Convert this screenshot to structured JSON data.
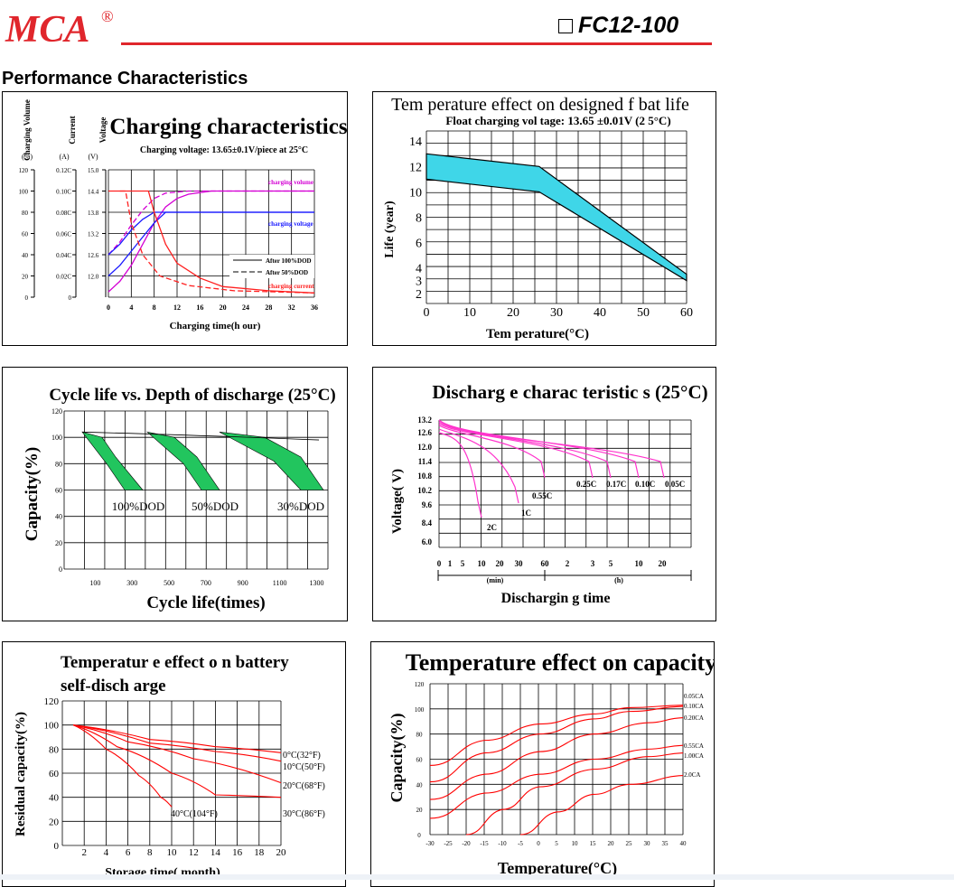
{
  "header": {
    "brand": "MCA",
    "registered_mark": "®",
    "model": "FC12-100",
    "section_title": "Performance Characteristics",
    "colors": {
      "brand_red": "#e0262c"
    }
  },
  "charts": {
    "charging": {
      "title": "Charging characteristics",
      "subtitle": "Charging voltage: 13.65±0.1V/piece at 25°C",
      "axis_names": [
        "Charging Volume",
        "Current",
        "Voltage"
      ],
      "axis_units": [
        "(%)",
        "(A)",
        "(V)"
      ],
      "volume_ticks": [
        "120",
        "100",
        "80",
        "60",
        "40",
        "20",
        "0"
      ],
      "current_ticks": [
        "0.12C",
        "0.10C",
        "0.08C",
        "0.06C",
        "0.04C",
        "0.02C",
        "0"
      ],
      "voltage_ticks": [
        "15.0",
        "14.4",
        "13.8",
        "13.2",
        "12.6",
        "12.0"
      ],
      "x_ticks": [
        "0",
        "4",
        "8",
        "12",
        "16",
        "20",
        "24",
        "28",
        "32",
        "36"
      ],
      "xlabel": "Charging time(h our)",
      "labels": {
        "volume": "charging volume",
        "voltage": "charging voltage",
        "current": "charging current"
      },
      "legend": [
        "After 100%DOD",
        "After 50%DOD"
      ]
    },
    "float_life": {
      "title": "Tem perature effect on designed f bat life",
      "subtitle": "Float charging vol tage: 13.65 ±0.01V (2 5°C)",
      "y_ticks": [
        "14",
        "12",
        "10",
        "8",
        "6",
        "4",
        "3",
        "2"
      ],
      "x_ticks": [
        "0",
        "10",
        "20",
        "30",
        "40",
        "50",
        "60"
      ],
      "ylabel": "Life (year)",
      "xlabel": "Tem perature(°C)",
      "band_upper": [
        [
          0,
          13
        ],
        [
          26,
          12
        ],
        [
          60,
          3.5
        ]
      ],
      "band_lower": [
        [
          0,
          11
        ],
        [
          26,
          10
        ],
        [
          60,
          3
        ]
      ],
      "colors": {
        "band": "#3fd6e8"
      }
    },
    "cycle_life": {
      "title": "Cycle life vs. Depth of discharge (25°C)",
      "y_ticks": [
        "120",
        "100",
        "80",
        "60",
        "40",
        "20",
        "0"
      ],
      "x_ticks": [
        "100",
        "300",
        "500",
        "700",
        "900",
        "1100",
        "1300"
      ],
      "ylabel": "Capacity(%)",
      "xlabel": "Cycle life(times)",
      "bands": [
        "100%DOD",
        "50%DOD",
        "30%DOD"
      ],
      "colors": {
        "band": "#22c55e"
      }
    },
    "discharge": {
      "title": "Discharg e charac teristic s (25°C)",
      "y_ticks": [
        "13.2",
        "12.6",
        "12.0",
        "11.4",
        "10.8",
        "10.2",
        "9.6",
        "8.4",
        "6.0"
      ],
      "x_ticks_min": [
        "0",
        "1",
        "5",
        "10",
        "20",
        "30",
        "60"
      ],
      "x_ticks_h": [
        "2",
        "3",
        "5",
        "10",
        "20"
      ],
      "unit_min": "(min)",
      "unit_h": "(h)",
      "ylabel": "Voltage( V)",
      "xlabel": "Dischargin g time",
      "rates": [
        "2C",
        "1C",
        "0.55C",
        "0.25C",
        "0.17C",
        "0.10C",
        "0.05C"
      ],
      "colors": {
        "curve": "#ff33cc"
      }
    },
    "self_discharge": {
      "title_line1": "Temperatur e effect o n battery",
      "title_line2": "self-disch arge",
      "y_ticks": [
        "120",
        "100",
        "80",
        "60",
        "40",
        "20",
        "0"
      ],
      "x_ticks": [
        "2",
        "4",
        "6",
        "8",
        "10",
        "12",
        "14",
        "16",
        "18",
        "20"
      ],
      "ylabel": "Residual capacity(%)",
      "xlabel": "Storage time( month)",
      "series": [
        "0°C(32°F)",
        "10°C(50°F)",
        "20°C(68°F)",
        "30°C(86°F)",
        "40°C(104°F)"
      ],
      "colors": {
        "curve": "#ff0000"
      }
    },
    "temp_capacity": {
      "title": "Temperature effect on capacity",
      "y_ticks": [
        "120",
        "100",
        "80",
        "60",
        "40",
        "20",
        "0"
      ],
      "x_ticks": [
        "-30",
        "-25",
        "-20",
        "-15",
        "-10",
        "-5",
        "0",
        "5",
        "10",
        "15",
        "20",
        "25",
        "30",
        "35",
        "40"
      ],
      "ylabel": "Capacity(%)",
      "xlabel": "Temperature(°C)",
      "series": [
        "0.05CA",
        "0.10CA",
        "0.20CA",
        "0.55CA",
        "1.00CA",
        "2.0CA"
      ],
      "colors": {
        "curve": "#ff0000"
      }
    }
  }
}
